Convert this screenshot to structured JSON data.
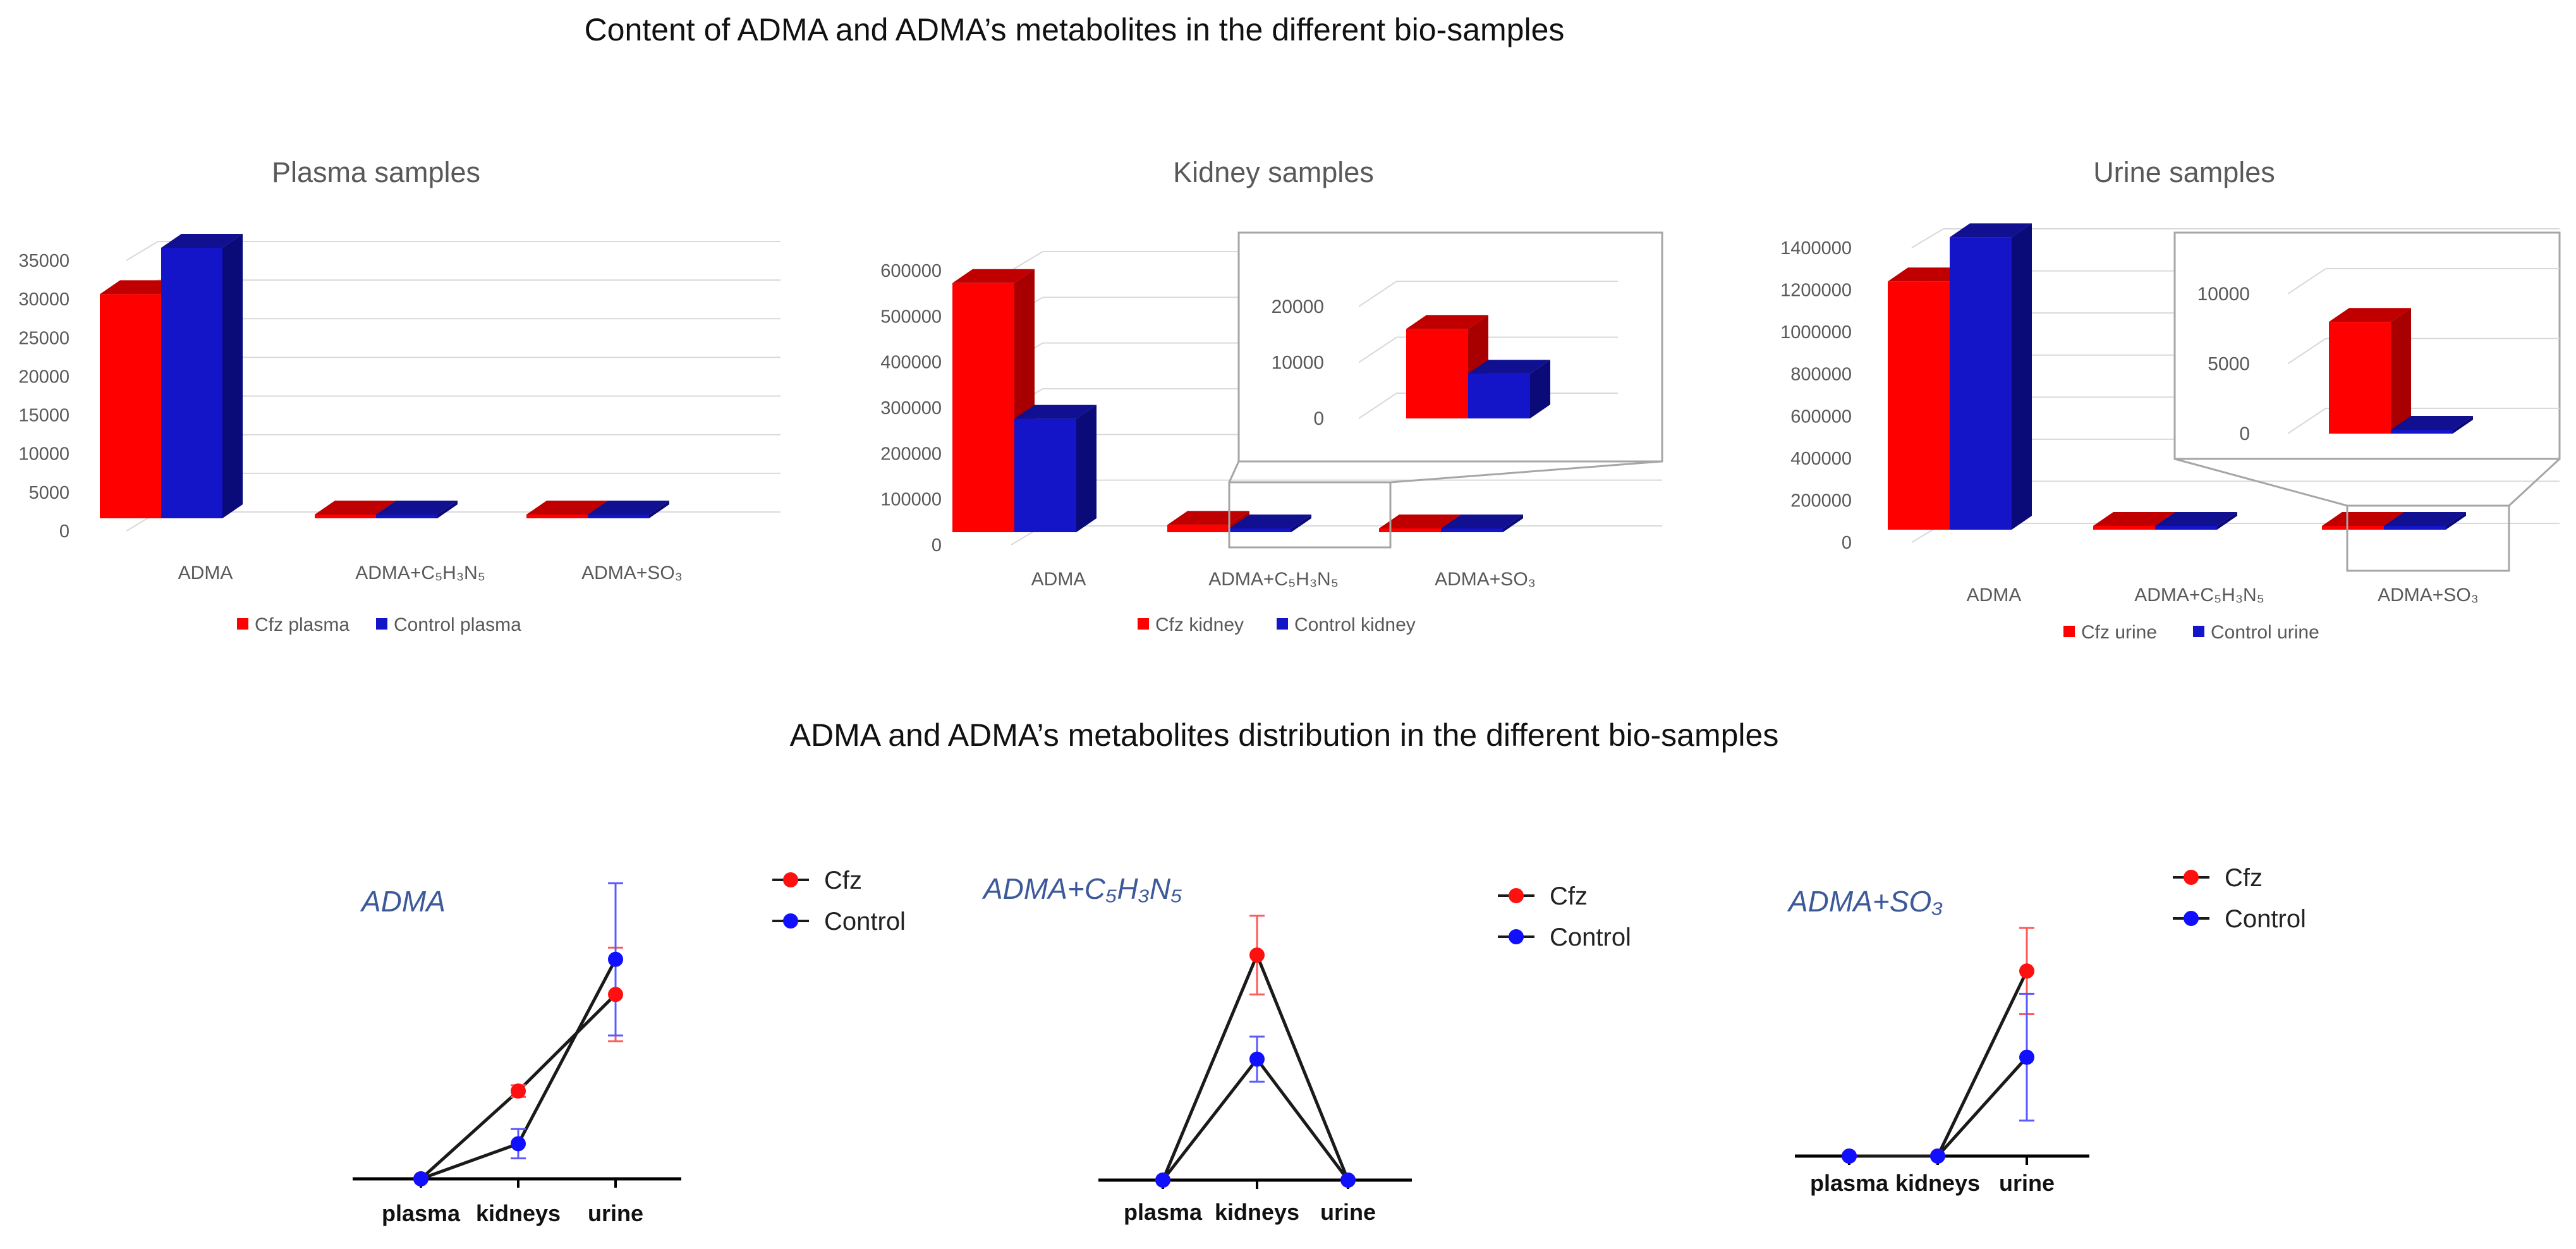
{
  "titles": {
    "top": "Content of ADMA and ADMA’s metabolites in the different bio-samples",
    "bottom": "ADMA and ADMA’s metabolites distribution in the different bio-samples"
  },
  "colors": {
    "cfz": "#ff0000",
    "cfz_top": "#c00000",
    "cfz_side": "#a80000",
    "control": "#1414c8",
    "control_top": "#101090",
    "control_side": "#0a0a78",
    "grid": "#d9d9d9",
    "axis_text": "#595959",
    "subtitle": "#595959",
    "title_italic": "#3c5a9a",
    "line": "#1a1a1a",
    "cfz_point": "#ff1010",
    "control_point": "#1010ff",
    "cfz_err": "#ff5a5a",
    "control_err": "#5a5aff"
  },
  "chart_data": [
    {
      "id": "plasma",
      "type": "bar",
      "title": "Plasma samples",
      "categories": [
        "ADMA",
        "ADMA+C5H3N5",
        "ADMA+SO3"
      ],
      "series": [
        {
          "name": "Cfz plasma",
          "values": [
            29000,
            0,
            0
          ]
        },
        {
          "name": "Control plasma",
          "values": [
            35000,
            0,
            0
          ]
        }
      ],
      "yticks": [
        "0",
        "5000",
        "10000",
        "15000",
        "20000",
        "25000",
        "30000",
        "35000"
      ],
      "ylim": [
        0,
        35000
      ]
    },
    {
      "id": "kidney",
      "type": "bar",
      "title": "Kidney samples",
      "categories": [
        "ADMA",
        "ADMA+C5H3N5",
        "ADMA+SO3"
      ],
      "series": [
        {
          "name": "Cfz kidney",
          "values": [
            545000,
            16000,
            0
          ]
        },
        {
          "name": "Control kidney",
          "values": [
            248000,
            8000,
            0
          ]
        }
      ],
      "yticks": [
        "0",
        "100000",
        "200000",
        "300000",
        "400000",
        "500000",
        "600000"
      ],
      "ylim": [
        0,
        600000
      ],
      "inset": {
        "category": "ADMA+C5H3N5",
        "yticks": [
          "0",
          "10000",
          "20000"
        ],
        "ylim": [
          0,
          20000
        ]
      }
    },
    {
      "id": "urine",
      "type": "bar",
      "title": "Urine samples",
      "categories": [
        "ADMA",
        "ADMA+C5H3N5",
        "ADMA+SO3"
      ],
      "series": [
        {
          "name": "Cfz urine",
          "values": [
            1180000,
            0,
            8000
          ]
        },
        {
          "name": "Control urine",
          "values": [
            1390000,
            0,
            0
          ]
        }
      ],
      "yticks": [
        "0",
        "200000",
        "400000",
        "600000",
        "800000",
        "1000000",
        "1200000",
        "1400000"
      ],
      "ylim": [
        0,
        1400000
      ],
      "inset": {
        "category": "ADMA+SO3",
        "yticks": [
          "0",
          "5000",
          "10000"
        ],
        "ylim": [
          0,
          10000
        ]
      }
    },
    {
      "id": "line-adma",
      "type": "line",
      "title": "ADMA",
      "categories": [
        "plasma",
        "kidneys",
        "urine"
      ],
      "ylim": [
        0,
        1
      ],
      "series": [
        {
          "name": "Cfz",
          "values": [
            0.0,
            0.3,
            0.63
          ],
          "errors": [
            0,
            0.02,
            0.16
          ]
        },
        {
          "name": "Control",
          "values": [
            0.0,
            0.12,
            0.75
          ],
          "errors": [
            0,
            0.05,
            0.26
          ]
        }
      ]
    },
    {
      "id": "line-c5h3n5",
      "type": "line",
      "title": "ADMA+C5H3N5",
      "categories": [
        "plasma",
        "kidneys",
        "urine"
      ],
      "ylim": [
        0,
        1
      ],
      "series": [
        {
          "name": "Cfz",
          "values": [
            0.0,
            0.8,
            0.0
          ],
          "errors": [
            0,
            0.14,
            0
          ]
        },
        {
          "name": "Control",
          "values": [
            0.0,
            0.43,
            0.0
          ],
          "errors": [
            0,
            0.08,
            0
          ]
        }
      ]
    },
    {
      "id": "line-so3",
      "type": "line",
      "title": "ADMA+SO3",
      "categories": [
        "plasma",
        "kidneys",
        "urine"
      ],
      "ylim": [
        0,
        1
      ],
      "series": [
        {
          "name": "Cfz",
          "values": [
            0.0,
            0.0,
            0.73
          ],
          "errors": [
            0,
            0,
            0.17
          ]
        },
        {
          "name": "Control",
          "values": [
            0.0,
            0.0,
            0.39
          ],
          "errors": [
            0,
            0,
            0.25
          ]
        }
      ]
    }
  ]
}
